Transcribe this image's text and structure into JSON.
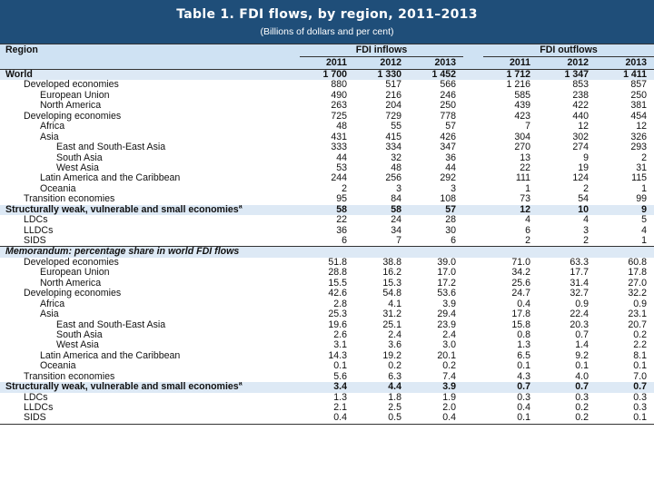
{
  "header": {
    "title": "Table 1. FDI flows, by region, 2011–2013",
    "subtitle": "(Billions of dollars and per cent)"
  },
  "columns": {
    "region_label": "Region",
    "inflows_label": "FDI inflows",
    "outflows_label": "FDI outflows",
    "years": [
      "2011",
      "2012",
      "2013",
      "2011",
      "2012",
      "2013"
    ]
  },
  "rows": [
    {
      "label": "World",
      "indent": 0,
      "style": "world",
      "values": [
        "1 700",
        "1 330",
        "1 452",
        "1 712",
        "1 347",
        "1 411"
      ]
    },
    {
      "label": "Developed economies",
      "indent": 1,
      "values": [
        "880",
        "517",
        "566",
        "1 216",
        "853",
        "857"
      ]
    },
    {
      "label": "European Union",
      "indent": 2,
      "values": [
        "490",
        "216",
        "246",
        "585",
        "238",
        "250"
      ]
    },
    {
      "label": "North America",
      "indent": 2,
      "values": [
        "263",
        "204",
        "250",
        "439",
        "422",
        "381"
      ]
    },
    {
      "label": "Developing economies",
      "indent": 1,
      "values": [
        "725",
        "729",
        "778",
        "423",
        "440",
        "454"
      ]
    },
    {
      "label": "Africa",
      "indent": 2,
      "values": [
        "48",
        "55",
        "57",
        "7",
        "12",
        "12"
      ]
    },
    {
      "label": "Asia",
      "indent": 2,
      "values": [
        "431",
        "415",
        "426",
        "304",
        "302",
        "326"
      ]
    },
    {
      "label": "East and South-East Asia",
      "indent": 3,
      "values": [
        "333",
        "334",
        "347",
        "270",
        "274",
        "293"
      ]
    },
    {
      "label": "South Asia",
      "indent": 3,
      "values": [
        "44",
        "32",
        "36",
        "13",
        "9",
        "2"
      ]
    },
    {
      "label": "West Asia",
      "indent": 3,
      "values": [
        "53",
        "48",
        "44",
        "22",
        "19",
        "31"
      ]
    },
    {
      "label": "Latin America and the Caribbean",
      "indent": 2,
      "values": [
        "244",
        "256",
        "292",
        "111",
        "124",
        "115"
      ]
    },
    {
      "label": "Oceania",
      "indent": 2,
      "values": [
        "2",
        "3",
        "3",
        "1",
        "2",
        "1"
      ]
    },
    {
      "label": "Transition economies",
      "indent": 1,
      "values": [
        "95",
        "84",
        "108",
        "73",
        "54",
        "99"
      ]
    },
    {
      "label": "Structurally weak, vulnerable and small economies",
      "sup": "a",
      "indent": 0,
      "style": "bold",
      "values": [
        "58",
        "58",
        "57",
        "12",
        "10",
        "9"
      ]
    },
    {
      "label": "LDCs",
      "indent": 1,
      "values": [
        "22",
        "24",
        "28",
        "4",
        "4",
        "5"
      ]
    },
    {
      "label": "LLDCs",
      "indent": 1,
      "values": [
        "36",
        "34",
        "30",
        "6",
        "3",
        "4"
      ]
    },
    {
      "label": "SIDS",
      "indent": 1,
      "values": [
        "6",
        "7",
        "6",
        "2",
        "2",
        "1"
      ]
    },
    {
      "label": "Memorandum: percentage share in world FDI flows",
      "indent": 0,
      "style": "memo",
      "values": [
        "",
        "",
        "",
        "",
        "",
        ""
      ]
    },
    {
      "label": "Developed economies",
      "indent": 1,
      "values": [
        "51.8",
        "38.8",
        "39.0",
        "71.0",
        "63.3",
        "60.8"
      ]
    },
    {
      "label": "European Union",
      "indent": 2,
      "values": [
        "28.8",
        "16.2",
        "17.0",
        "34.2",
        "17.7",
        "17.8"
      ]
    },
    {
      "label": "North America",
      "indent": 2,
      "values": [
        "15.5",
        "15.3",
        "17.2",
        "25.6",
        "31.4",
        "27.0"
      ]
    },
    {
      "label": "Developing economies",
      "indent": 1,
      "values": [
        "42.6",
        "54.8",
        "53.6",
        "24.7",
        "32.7",
        "32.2"
      ]
    },
    {
      "label": "Africa",
      "indent": 2,
      "values": [
        "2.8",
        "4.1",
        "3.9",
        "0.4",
        "0.9",
        "0.9"
      ]
    },
    {
      "label": "Asia",
      "indent": 2,
      "values": [
        "25.3",
        "31.2",
        "29.4",
        "17.8",
        "22.4",
        "23.1"
      ]
    },
    {
      "label": "East and South-East Asia",
      "indent": 3,
      "values": [
        "19.6",
        "25.1",
        "23.9",
        "15.8",
        "20.3",
        "20.7"
      ]
    },
    {
      "label": "South Asia",
      "indent": 3,
      "values": [
        "2.6",
        "2.4",
        "2.4",
        "0.8",
        "0.7",
        "0.2"
      ]
    },
    {
      "label": "West Asia",
      "indent": 3,
      "values": [
        "3.1",
        "3.6",
        "3.0",
        "1.3",
        "1.4",
        "2.2"
      ]
    },
    {
      "label": "Latin America and the Caribbean",
      "indent": 2,
      "values": [
        "14.3",
        "19.2",
        "20.1",
        "6.5",
        "9.2",
        "8.1"
      ]
    },
    {
      "label": "Oceania",
      "indent": 2,
      "values": [
        "0.1",
        "0.2",
        "0.2",
        "0.1",
        "0.1",
        "0.1"
      ]
    },
    {
      "label": "Transition economies",
      "indent": 1,
      "values": [
        "5.6",
        "6.3",
        "7.4",
        "4.3",
        "4.0",
        "7.0"
      ]
    },
    {
      "label": "Structurally weak, vulnerable and small economies",
      "sup": "a",
      "indent": 0,
      "style": "bold",
      "values": [
        "3.4",
        "4.4",
        "3.9",
        "0.7",
        "0.7",
        "0.7"
      ]
    },
    {
      "label": "LDCs",
      "indent": 1,
      "values": [
        "1.3",
        "1.8",
        "1.9",
        "0.3",
        "0.3",
        "0.3"
      ]
    },
    {
      "label": "LLDCs",
      "indent": 1,
      "values": [
        "2.1",
        "2.5",
        "2.0",
        "0.4",
        "0.2",
        "0.3"
      ]
    },
    {
      "label": "SIDS",
      "indent": 1,
      "values": [
        "0.4",
        "0.5",
        "0.4",
        "0.1",
        "0.2",
        "0.1"
      ]
    }
  ]
}
